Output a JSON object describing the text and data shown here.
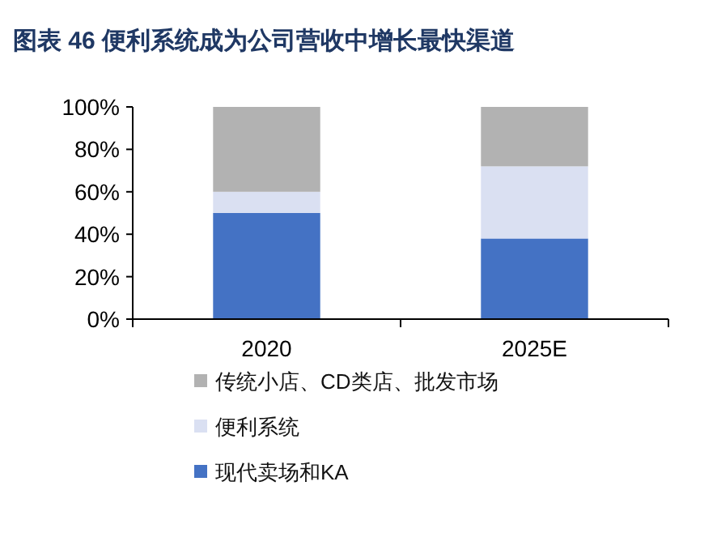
{
  "chart_data": {
    "type": "bar",
    "stacked": true,
    "title": "图表 46  便利系统成为公司营收中增长最快渠道",
    "categories": [
      "2020",
      "2025E"
    ],
    "series": [
      {
        "name": "现代卖场和KA",
        "color": "#4472c4",
        "values": [
          50,
          38
        ]
      },
      {
        "name": "便利系统",
        "color": "#dae0f2",
        "values": [
          10,
          34
        ]
      },
      {
        "name": "传统小店、CD类店、批发市场",
        "color": "#b2b2b2",
        "values": [
          40,
          28
        ]
      }
    ],
    "ylim": [
      0,
      100
    ],
    "yticks": [
      {
        "value": 0,
        "label": "0%"
      },
      {
        "value": 20,
        "label": "20%"
      },
      {
        "value": 40,
        "label": "40%"
      },
      {
        "value": 60,
        "label": "60%"
      },
      {
        "value": 80,
        "label": "80%"
      },
      {
        "value": 100,
        "label": "100%"
      }
    ],
    "legend": "bottom",
    "grid": false
  }
}
